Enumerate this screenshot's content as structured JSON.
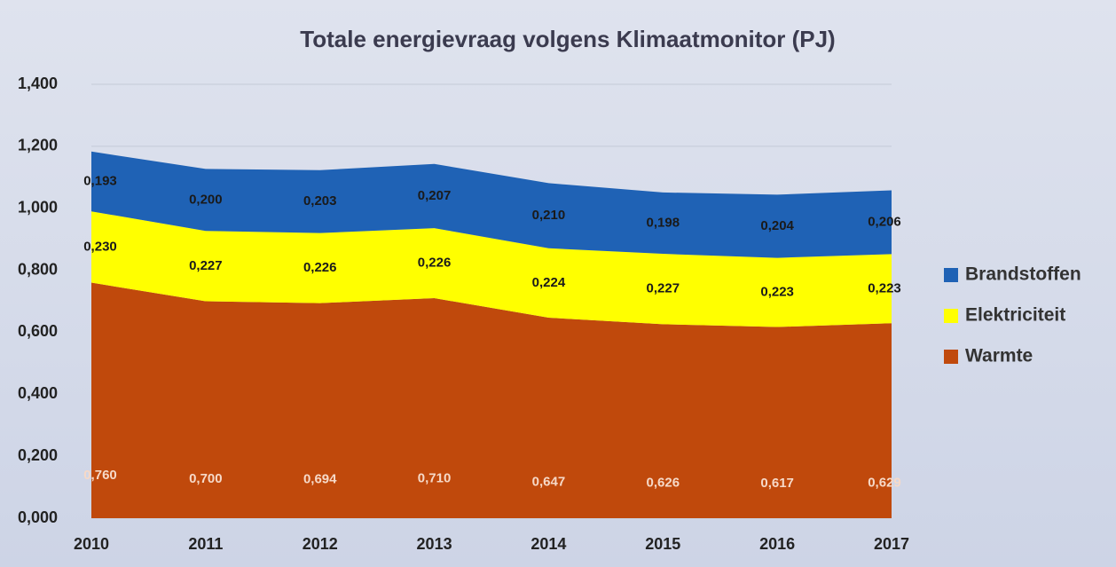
{
  "chart_data": {
    "type": "area",
    "stacked": true,
    "title": "Totale energievraag volgens Klimaatmonitor (PJ)",
    "categories": [
      "2010",
      "2011",
      "2012",
      "2013",
      "2014",
      "2015",
      "2016",
      "2017"
    ],
    "series": [
      {
        "name": "Warmte",
        "color": "#c0490c",
        "values": [
          0.76,
          0.7,
          0.694,
          0.71,
          0.647,
          0.626,
          0.617,
          0.629
        ],
        "value_labels": [
          "0,760",
          "0,700",
          "0,694",
          "0,710",
          "0,647",
          "0,626",
          "0,617",
          "0,629"
        ]
      },
      {
        "name": "Elektriciteit",
        "color": "#ffff00",
        "values": [
          0.23,
          0.227,
          0.226,
          0.226,
          0.224,
          0.227,
          0.223,
          0.223
        ],
        "value_labels": [
          "0,230",
          "0,227",
          "0,226",
          "0,226",
          "0,224",
          "0,227",
          "0,223",
          "0,223"
        ]
      },
      {
        "name": "Brandstoffen",
        "color": "#1f62b5",
        "values": [
          0.193,
          0.2,
          0.203,
          0.207,
          0.21,
          0.198,
          0.204,
          0.206
        ],
        "value_labels": [
          "0,193",
          "0,200",
          "0,203",
          "0,207",
          "0,210",
          "0,198",
          "0,204",
          "0,206"
        ]
      }
    ],
    "ylim": [
      0,
      1.4
    ],
    "yticks": [
      {
        "value": 0,
        "label": "0,000"
      },
      {
        "value": 0.2,
        "label": "0,200"
      },
      {
        "value": 0.4,
        "label": "0,400"
      },
      {
        "value": 0.6,
        "label": "0,600"
      },
      {
        "value": 0.8,
        "label": "0,800"
      },
      {
        "value": 1,
        "label": "1,000"
      },
      {
        "value": 1.2,
        "label": "1,200"
      },
      {
        "value": 1.4,
        "label": "1,400"
      }
    ],
    "grid": true,
    "legend": "right"
  }
}
